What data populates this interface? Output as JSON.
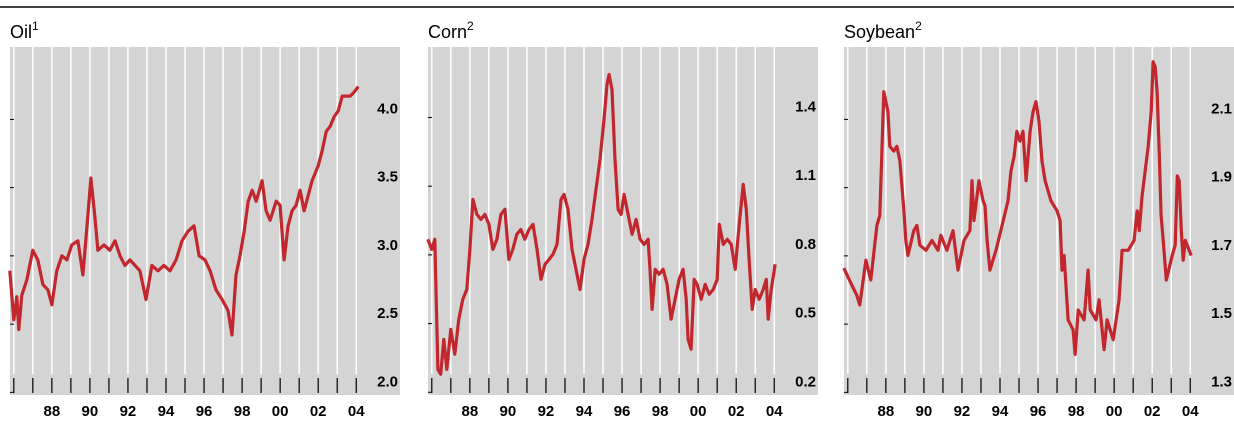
{
  "chart_data": [
    {
      "type": "line",
      "title": "Oil",
      "title_note": "1",
      "color": "#c1272d",
      "grid": true,
      "xlim": [
        1985.8,
        2006.3
      ],
      "ylim": [
        1.9,
        4.45
      ],
      "xticks": [
        {
          "value": 1986,
          "label": null
        },
        {
          "value": 1987,
          "label": null
        },
        {
          "value": 1988,
          "label": "88"
        },
        {
          "value": 1989,
          "label": null
        },
        {
          "value": 1990,
          "label": "90"
        },
        {
          "value": 1991,
          "label": null
        },
        {
          "value": 1992,
          "label": "92"
        },
        {
          "value": 1993,
          "label": null
        },
        {
          "value": 1994,
          "label": "94"
        },
        {
          "value": 1995,
          "label": null
        },
        {
          "value": 1996,
          "label": "96"
        },
        {
          "value": 1997,
          "label": null
        },
        {
          "value": 1998,
          "label": "98"
        },
        {
          "value": 1999,
          "label": null
        },
        {
          "value": 2000,
          "label": "00"
        },
        {
          "value": 2001,
          "label": null
        },
        {
          "value": 2002,
          "label": "02"
        },
        {
          "value": 2003,
          "label": null
        },
        {
          "value": 2004,
          "label": "04"
        }
      ],
      "yticks": [
        {
          "value": 2,
          "label": "2.0"
        },
        2.5,
        {
          "value": 3,
          "label": "3.0"
        },
        3.5,
        {
          "value": 4,
          "label": "4.0"
        }
      ],
      "x": [
        1985.79,
        1986.0,
        1986.16,
        1986.26,
        1986.42,
        1986.68,
        1987.0,
        1987.26,
        1987.53,
        1987.79,
        1988.0,
        1988.26,
        1988.53,
        1988.79,
        1989.05,
        1989.37,
        1989.63,
        1989.89,
        1990.05,
        1990.26,
        1990.42,
        1990.74,
        1991.05,
        1991.32,
        1991.58,
        1991.84,
        1992.11,
        1992.37,
        1992.63,
        1992.95,
        1993.26,
        1993.58,
        1993.89,
        1994.21,
        1994.53,
        1994.84,
        1995.16,
        1995.47,
        1995.74,
        1996.05,
        1996.32,
        1996.63,
        1996.95,
        1997.26,
        1997.47,
        1997.68,
        1997.89,
        1998.11,
        1998.32,
        1998.53,
        1998.74,
        1999.05,
        1999.26,
        1999.47,
        1999.79,
        2000.0,
        2000.21,
        2000.42,
        2000.63,
        2000.84,
        2001.05,
        2001.26,
        2001.47,
        2001.68,
        2002.0,
        2002.21,
        2002.42,
        2002.63,
        2002.84,
        2003.05,
        2003.26,
        2003.47,
        2003.68,
        2003.89,
        2004.11
      ],
      "values": [
        2.81,
        2.45,
        2.62,
        2.38,
        2.63,
        2.74,
        2.96,
        2.89,
        2.71,
        2.67,
        2.56,
        2.81,
        2.92,
        2.89,
        3.0,
        3.03,
        2.78,
        3.21,
        3.49,
        3.21,
        2.96,
        3.0,
        2.96,
        3.03,
        2.92,
        2.85,
        2.89,
        2.85,
        2.81,
        2.6,
        2.85,
        2.81,
        2.85,
        2.81,
        2.89,
        3.03,
        3.1,
        3.14,
        2.92,
        2.89,
        2.81,
        2.67,
        2.6,
        2.52,
        2.34,
        2.78,
        2.92,
        3.1,
        3.32,
        3.4,
        3.32,
        3.47,
        3.25,
        3.18,
        3.32,
        3.29,
        2.89,
        3.14,
        3.25,
        3.29,
        3.4,
        3.25,
        3.36,
        3.47,
        3.58,
        3.69,
        3.83,
        3.87,
        3.94,
        3.98,
        4.09,
        4.09,
        4.09,
        4.12,
        4.16
      ]
    },
    {
      "type": "line",
      "title": "Corn",
      "title_note": "2",
      "color": "#c1272d",
      "grid": true,
      "xlim": [
        1985.8,
        2006.3
      ],
      "ylim": [
        0.14,
        1.66
      ],
      "xticks": [
        {
          "value": 1986,
          "label": null
        },
        {
          "value": 1987,
          "label": null
        },
        {
          "value": 1988,
          "label": "88"
        },
        {
          "value": 1989,
          "label": null
        },
        {
          "value": 1990,
          "label": "90"
        },
        {
          "value": 1991,
          "label": null
        },
        {
          "value": 1992,
          "label": "92"
        },
        {
          "value": 1993,
          "label": null
        },
        {
          "value": 1994,
          "label": "94"
        },
        {
          "value": 1995,
          "label": null
        },
        {
          "value": 1996,
          "label": "96"
        },
        {
          "value": 1997,
          "label": null
        },
        {
          "value": 1998,
          "label": "98"
        },
        {
          "value": 1999,
          "label": null
        },
        {
          "value": 2000,
          "label": "00"
        },
        {
          "value": 2001,
          "label": null
        },
        {
          "value": 2002,
          "label": "02"
        },
        {
          "value": 2003,
          "label": null
        },
        {
          "value": 2004,
          "label": "04"
        }
      ],
      "yticks": [
        0.2,
        0.5,
        0.8,
        1.1,
        1.4
      ],
      "x": [
        1985.79,
        1986.0,
        1986.16,
        1986.32,
        1986.47,
        1986.63,
        1986.79,
        1987.0,
        1987.21,
        1987.42,
        1987.63,
        1987.84,
        1988.0,
        1988.16,
        1988.37,
        1988.58,
        1988.79,
        1989.0,
        1989.21,
        1989.42,
        1989.63,
        1989.84,
        1990.05,
        1990.26,
        1990.47,
        1990.68,
        1990.89,
        1991.11,
        1991.32,
        1991.53,
        1991.74,
        1991.95,
        1992.16,
        1992.37,
        1992.58,
        1992.79,
        1992.95,
        1993.16,
        1993.37,
        1993.58,
        1993.79,
        1994.0,
        1994.21,
        1994.42,
        1994.63,
        1994.84,
        1995.05,
        1995.21,
        1995.32,
        1995.47,
        1995.63,
        1995.79,
        1995.95,
        1996.11,
        1996.32,
        1996.53,
        1996.74,
        1996.95,
        1997.16,
        1997.37,
        1997.47,
        1997.58,
        1997.74,
        1997.95,
        1998.16,
        1998.37,
        1998.58,
        1998.79,
        1999.0,
        1999.21,
        1999.37,
        1999.47,
        1999.63,
        1999.79,
        1999.95,
        2000.16,
        2000.37,
        2000.58,
        2000.79,
        2001.0,
        2001.11,
        2001.32,
        2001.53,
        2001.74,
        2001.95,
        2002.16,
        2002.37,
        2002.53,
        2002.68,
        2002.84,
        2003.0,
        2003.21,
        2003.42,
        2003.58,
        2003.68,
        2003.84,
        2004.05
      ],
      "values": [
        0.82,
        0.776,
        0.82,
        0.252,
        0.231,
        0.383,
        0.252,
        0.427,
        0.318,
        0.471,
        0.558,
        0.601,
        0.776,
        0.994,
        0.929,
        0.907,
        0.929,
        0.885,
        0.776,
        0.82,
        0.929,
        0.951,
        0.732,
        0.776,
        0.842,
        0.863,
        0.82,
        0.863,
        0.885,
        0.776,
        0.645,
        0.711,
        0.732,
        0.754,
        0.798,
        0.994,
        1.016,
        0.951,
        0.776,
        0.689,
        0.601,
        0.732,
        0.798,
        0.907,
        1.038,
        1.169,
        1.343,
        1.496,
        1.54,
        1.474,
        1.169,
        0.951,
        0.929,
        1.016,
        0.929,
        0.842,
        0.907,
        0.82,
        0.798,
        0.82,
        0.689,
        0.514,
        0.689,
        0.667,
        0.689,
        0.623,
        0.471,
        0.558,
        0.645,
        0.689,
        0.558,
        0.383,
        0.34,
        0.645,
        0.623,
        0.558,
        0.623,
        0.58,
        0.601,
        0.645,
        0.885,
        0.798,
        0.82,
        0.798,
        0.689,
        0.885,
        1.06,
        0.951,
        0.732,
        0.514,
        0.601,
        0.558,
        0.601,
        0.645,
        0.471,
        0.601,
        0.711
      ]
    },
    {
      "type": "line",
      "title": "Soybean",
      "title_note": "2",
      "color": "#c1272d",
      "grid": true,
      "xlim": [
        1985.8,
        2006.3
      ],
      "ylim": [
        1.26,
        2.28
      ],
      "xticks": [
        {
          "value": 1986,
          "label": null
        },
        {
          "value": 1987,
          "label": null
        },
        {
          "value": 1988,
          "label": "88"
        },
        {
          "value": 1989,
          "label": null
        },
        {
          "value": 1990,
          "label": "90"
        },
        {
          "value": 1991,
          "label": null
        },
        {
          "value": 1992,
          "label": "92"
        },
        {
          "value": 1993,
          "label": null
        },
        {
          "value": 1994,
          "label": "94"
        },
        {
          "value": 1995,
          "label": null
        },
        {
          "value": 1996,
          "label": "96"
        },
        {
          "value": 1997,
          "label": null
        },
        {
          "value": 1998,
          "label": "98"
        },
        {
          "value": 1999,
          "label": null
        },
        {
          "value": 2000,
          "label": "00"
        },
        {
          "value": 2001,
          "label": null
        },
        {
          "value": 2002,
          "label": "02"
        },
        {
          "value": 2003,
          "label": null
        },
        {
          "value": 2004,
          "label": "04"
        }
      ],
      "yticks": [
        1.3,
        1.5,
        1.7,
        1.9,
        2.1
      ],
      "x": [
        1985.79,
        1986.21,
        1986.47,
        1986.63,
        1986.95,
        1987.21,
        1987.53,
        1987.68,
        1987.79,
        1987.89,
        1988.11,
        1988.21,
        1988.42,
        1988.58,
        1988.74,
        1988.95,
        1989.05,
        1989.16,
        1989.47,
        1989.63,
        1989.79,
        1990.11,
        1990.42,
        1990.74,
        1990.89,
        1991.21,
        1991.53,
        1991.79,
        1992.11,
        1992.42,
        1992.53,
        1992.63,
        1992.89,
        1993.11,
        1993.21,
        1993.32,
        1993.47,
        1993.79,
        1994.11,
        1994.42,
        1994.58,
        1994.74,
        1994.89,
        1995.05,
        1995.21,
        1995.37,
        1995.58,
        1995.74,
        1995.89,
        1996.05,
        1996.21,
        1996.37,
        1996.68,
        1997.0,
        1997.16,
        1997.26,
        1997.37,
        1997.58,
        1997.84,
        1997.95,
        1998.11,
        1998.42,
        1998.63,
        1998.74,
        1999.05,
        1999.21,
        1999.47,
        1999.63,
        1999.95,
        2000.26,
        2000.42,
        2000.74,
        2001.05,
        2001.21,
        2001.32,
        2001.47,
        2001.79,
        2001.95,
        2002.05,
        2002.16,
        2002.26,
        2002.37,
        2002.47,
        2002.58,
        2002.74,
        2003.05,
        2003.21,
        2003.32,
        2003.42,
        2003.53,
        2003.63,
        2003.74,
        2004.05
      ],
      "values": [
        1.632,
        1.582,
        1.553,
        1.524,
        1.655,
        1.597,
        1.757,
        1.786,
        1.975,
        2.149,
        2.091,
        1.989,
        1.975,
        1.989,
        1.946,
        1.8,
        1.713,
        1.669,
        1.742,
        1.757,
        1.699,
        1.684,
        1.713,
        1.684,
        1.728,
        1.684,
        1.742,
        1.626,
        1.713,
        1.742,
        1.888,
        1.771,
        1.888,
        1.829,
        1.815,
        1.713,
        1.626,
        1.684,
        1.757,
        1.829,
        1.917,
        1.96,
        2.033,
        2.004,
        2.033,
        1.888,
        2.033,
        2.091,
        2.12,
        2.062,
        1.946,
        1.888,
        1.829,
        1.8,
        1.771,
        1.626,
        1.669,
        1.48,
        1.451,
        1.379,
        1.509,
        1.48,
        1.626,
        1.509,
        1.48,
        1.539,
        1.393,
        1.48,
        1.422,
        1.539,
        1.684,
        1.684,
        1.713,
        1.8,
        1.742,
        1.844,
        1.989,
        2.091,
        2.237,
        2.222,
        2.149,
        1.975,
        1.786,
        1.713,
        1.597,
        1.669,
        1.699,
        1.902,
        1.888,
        1.742,
        1.655,
        1.713,
        1.669
      ]
    }
  ]
}
